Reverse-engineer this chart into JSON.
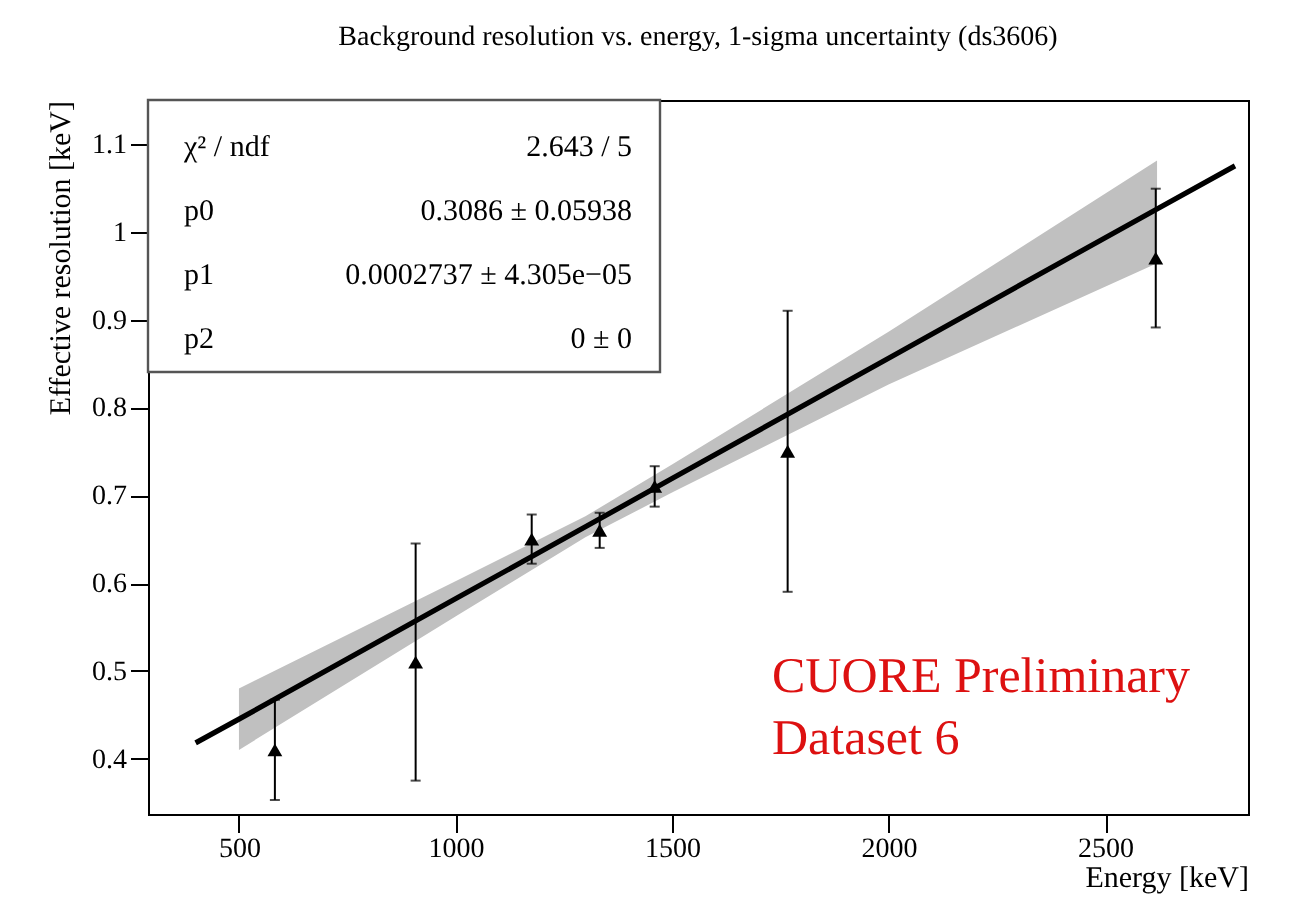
{
  "chart_data": {
    "type": "scatter",
    "title": "Background resolution vs. energy, 1-sigma uncertainty (ds3606)",
    "xlabel": "Energy [keV]",
    "ylabel": "Effective resolution [keV]",
    "xlim": [
      290,
      2830
    ],
    "ylim": [
      0.337,
      1.15
    ],
    "xticks": [
      500,
      1000,
      1500,
      2000,
      2500
    ],
    "yticks": [
      0.4,
      0.5,
      0.6,
      0.7,
      0.8,
      0.9,
      1,
      1.1
    ],
    "grid": false,
    "annotations": [
      "χ² / ndf",
      "2.643 / 5",
      "p0",
      "0.3086 ± 0.05938",
      "p1",
      "0.0002737 ± 4.305e−05",
      "p2",
      "0 ±    0",
      "CUORE Preliminary",
      "Dataset 6"
    ],
    "series": [
      {
        "type": "line",
        "color": "#000000",
        "x": [
          400,
          500,
          1000,
          1300,
          1500,
          2000,
          2620,
          2800
        ],
        "values": [
          0.418,
          0.445,
          0.582,
          0.664,
          0.719,
          0.856,
          1.026,
          1.075
        ],
        "lower": [
          null,
          0.41,
          0.562,
          0.652,
          0.703,
          0.826,
          0.964,
          null
        ],
        "upper": [
          null,
          0.48,
          0.602,
          0.676,
          0.735,
          0.886,
          1.081,
          null
        ]
      },
      {
        "marker": "triangle",
        "color": "#000000",
        "x": [
          583,
          908,
          1176,
          1333,
          1460,
          1767,
          2617
        ],
        "values": [
          0.41,
          0.51,
          0.65,
          0.66,
          0.71,
          0.75,
          0.97
        ],
        "errors": [
          0.057,
          0.135,
          0.028,
          0.02,
          0.023,
          0.16,
          0.079
        ]
      }
    ]
  }
}
